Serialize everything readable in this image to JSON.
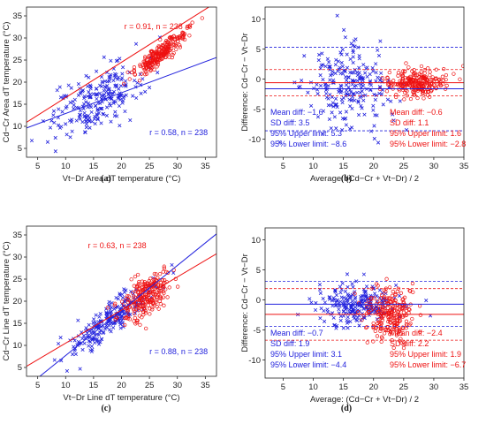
{
  "colors": {
    "blue": "#2222dd",
    "red": "#ee1111"
  },
  "chart_data": [
    {
      "panel": "(a)",
      "type": "scatter",
      "xlabel": "Vt−Dr Area dT temperature (°C)",
      "ylabel": "Cd−Cr Area dT temperature (°C)",
      "xlim": [
        3,
        37
      ],
      "ylim": [
        3,
        37
      ],
      "xticks": [
        5,
        10,
        15,
        20,
        25,
        30,
        35
      ],
      "yticks": [
        5,
        10,
        15,
        20,
        25,
        30,
        35
      ],
      "annotations": [
        {
          "text": "r = 0.91, n = 238",
          "color": "red",
          "x": 20.5,
          "y": 32
        },
        {
          "text": "r = 0.58, n = 238",
          "color": "blue",
          "x": 25,
          "y": 8
        }
      ],
      "series": [
        {
          "color": "blue",
          "marker": "x",
          "fit": {
            "slope": 0.47,
            "intercept": 8.2,
            "x": [
              3,
              37
            ]
          },
          "cluster": {
            "cx": 15.5,
            "cy": 16,
            "sx": 4.2,
            "sy": 4.0,
            "corr": 0.58,
            "n": 238
          }
        },
        {
          "color": "red",
          "marker": "o",
          "fit": {
            "slope": 0.8,
            "intercept": 8.5,
            "x": [
              3,
              37
            ]
          },
          "cluster": {
            "cx": 27,
            "cy": 26.5,
            "sx": 2.4,
            "sy": 2.6,
            "corr": 0.91,
            "n": 238
          }
        }
      ]
    },
    {
      "panel": "(b)",
      "type": "scatter",
      "xlabel": "Average: (Cd−Cr + Vt−Dr) / 2",
      "ylabel": "Difference: Cd−Cr − Vt−Dr",
      "xlim": [
        2,
        35
      ],
      "ylim": [
        -13,
        12
      ],
      "xticks": [
        5,
        10,
        15,
        20,
        25,
        30,
        35
      ],
      "yticks": [
        -10,
        -5,
        0,
        5,
        10
      ],
      "stats": {
        "blue": {
          "lines": [
            "Mean diff: −1.6",
            "SD diff: 3.5",
            "95% Upper limit: 5.3",
            "95% Lower limit: −8.6"
          ],
          "mean": -1.6,
          "upper": 5.3,
          "lower": -8.6
        },
        "red": {
          "lines": [
            "Mean diff: −0.6",
            "SD diff: 1.1",
            "95% Upper limit: 1.6",
            "95% Lower limit: −2.8"
          ],
          "mean": -0.6,
          "upper": 1.6,
          "lower": -2.8
        }
      },
      "series": [
        {
          "color": "blue",
          "marker": "x",
          "cluster": {
            "cx": 15.5,
            "cy": -1.6,
            "sx": 3.4,
            "sy": 3.3,
            "corr": 0,
            "n": 238
          }
        },
        {
          "color": "red",
          "marker": "o",
          "cluster": {
            "cx": 27,
            "cy": -0.6,
            "sx": 2.4,
            "sy": 1.0,
            "corr": 0,
            "n": 238
          }
        }
      ]
    },
    {
      "panel": "(c)",
      "type": "scatter",
      "xlabel": "Vt−Dr Line dT temperature (°C)",
      "ylabel": "Cd−Cr Line dT temperature (°C)",
      "xlim": [
        3,
        37
      ],
      "ylim": [
        3,
        37
      ],
      "xticks": [
        5,
        10,
        15,
        20,
        25,
        30,
        35
      ],
      "yticks": [
        5,
        10,
        15,
        20,
        25,
        30,
        35
      ],
      "annotations": [
        {
          "text": "r = 0.63, n = 238",
          "color": "red",
          "x": 14,
          "y": 32
        },
        {
          "text": "r = 0.88, n = 238",
          "color": "blue",
          "x": 25,
          "y": 8
        }
      ],
      "series": [
        {
          "color": "blue",
          "marker": "x",
          "fit": {
            "slope": 1.02,
            "intercept": -2.5,
            "x": [
              3,
              37
            ]
          },
          "cluster": {
            "cx": 18,
            "cy": 16,
            "sx": 3.6,
            "sy": 3.8,
            "corr": 0.88,
            "n": 238
          }
        },
        {
          "color": "red",
          "marker": "o",
          "fit": {
            "slope": 0.75,
            "intercept": 3.0,
            "x": [
              3,
              37
            ]
          },
          "cluster": {
            "cx": 24.5,
            "cy": 21,
            "sx": 2.3,
            "sy": 2.8,
            "corr": 0.63,
            "n": 238
          }
        }
      ]
    },
    {
      "panel": "(d)",
      "type": "scatter",
      "xlabel": "Average: (Cd−Cr + Vt−Dr) / 2",
      "ylabel": "Difference: Cd−Cr − Vt−Dr",
      "xlim": [
        2,
        35
      ],
      "ylim": [
        -13,
        12
      ],
      "xticks": [
        5,
        10,
        15,
        20,
        25,
        30,
        35
      ],
      "yticks": [
        -10,
        -5,
        0,
        5,
        10
      ],
      "stats": {
        "blue": {
          "lines": [
            "Mean diff: −0.7",
            "SD diff: 1.9",
            "95% Upper limit: 3.1",
            "95% Lower limit: −4.4"
          ],
          "mean": -0.7,
          "upper": 3.1,
          "lower": -4.4
        },
        "red": {
          "lines": [
            "Mean diff: −2.4",
            "SD diff: 2.2",
            "95% Upper limit: 1.9",
            "95% Lower limit: −6.7"
          ],
          "mean": -2.4,
          "upper": 1.9,
          "lower": -6.7
        }
      },
      "series": [
        {
          "color": "blue",
          "marker": "x",
          "cluster": {
            "cx": 17,
            "cy": -0.7,
            "sx": 3.5,
            "sy": 1.7,
            "corr": 0,
            "n": 238
          }
        },
        {
          "color": "red",
          "marker": "o",
          "cluster": {
            "cx": 22.8,
            "cy": -2.4,
            "sx": 2.0,
            "sy": 2.1,
            "corr": 0,
            "n": 238
          }
        }
      ]
    }
  ]
}
